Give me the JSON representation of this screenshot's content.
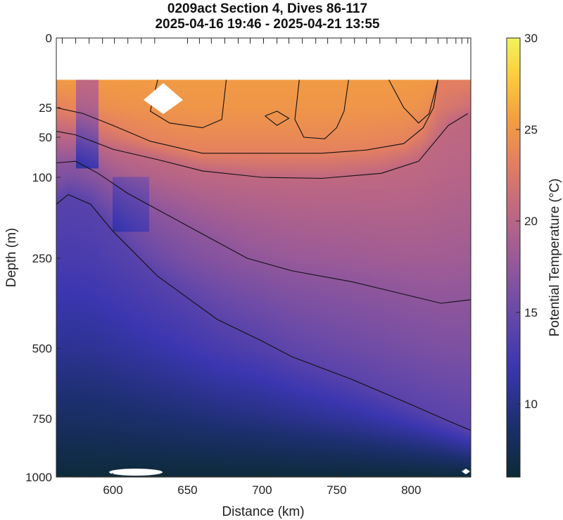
{
  "chart_data": {
    "type": "heatmap",
    "title": "0209act Section 4, Dives 86-117",
    "subtitle": "2025-04-16 19:46 - 2025-04-21 13:55",
    "xlabel": "Distance (km)",
    "ylabel": "Depth (m)",
    "colorbar_label": "Potential Temperature (°C)",
    "xlim": [
      562,
      840
    ],
    "x_ticks": [
      600,
      650,
      700,
      750,
      800
    ],
    "y_ticks": [
      0,
      25,
      50,
      100,
      250,
      500,
      750,
      1000
    ],
    "y_tick_labels": [
      "0",
      "25",
      "50",
      "100",
      "250",
      "500",
      "750",
      "1000"
    ],
    "y_scale": "nonlinear (compressed with depth)",
    "ylim": [
      0,
      1000
    ],
    "colorbar_ticks": [
      10,
      15,
      20,
      25,
      30
    ],
    "colorbar_range": [
      6,
      30
    ],
    "colormap": [
      "#0c2a36",
      "#1c2f6e",
      "#3b36b0",
      "#6a4aa8",
      "#9a5a98",
      "#c46a7e",
      "#e48060",
      "#f4a03e",
      "#fcd03c",
      "#f0f45a"
    ],
    "dive_ticks_km": [
      566,
      575,
      584,
      593,
      601,
      610,
      619,
      628,
      650,
      658,
      666,
      675,
      684,
      692,
      701,
      710,
      718,
      727,
      736,
      744,
      753,
      762,
      770,
      779,
      790,
      800,
      810,
      818,
      824,
      830,
      834,
      838
    ],
    "data_top_depth_m": 15,
    "contours": [
      {
        "level": 13,
        "points": [
          [
            562,
            150
          ],
          [
            570,
            132
          ],
          [
            585,
            150
          ],
          [
            600,
            200
          ],
          [
            630,
            300
          ],
          [
            670,
            420
          ],
          [
            700,
            480
          ],
          [
            720,
            530
          ],
          [
            760,
            610
          ],
          [
            800,
            700
          ],
          [
            825,
            760
          ],
          [
            840,
            800
          ]
        ]
      },
      {
        "level": 16,
        "points": [
          [
            562,
            82
          ],
          [
            575,
            80
          ],
          [
            590,
            95
          ],
          [
            610,
            130
          ],
          [
            650,
            190
          ],
          [
            690,
            250
          ],
          [
            720,
            285
          ],
          [
            760,
            315
          ],
          [
            790,
            345
          ],
          [
            820,
            375
          ],
          [
            840,
            365
          ]
        ]
      },
      {
        "level": 19,
        "points": [
          [
            562,
            45
          ],
          [
            575,
            48
          ],
          [
            600,
            65
          ],
          [
            630,
            78
          ],
          [
            660,
            92
          ],
          [
            700,
            100
          ],
          [
            740,
            102
          ],
          [
            780,
            95
          ],
          [
            805,
            80
          ],
          [
            825,
            40
          ],
          [
            838,
            30
          ]
        ]
      },
      {
        "level": 22,
        "points": [
          [
            562,
            25
          ],
          [
            580,
            30
          ],
          [
            600,
            40
          ],
          [
            625,
            55
          ],
          [
            660,
            70
          ],
          [
            700,
            70
          ],
          [
            740,
            70
          ],
          [
            770,
            66
          ],
          [
            795,
            58
          ],
          [
            808,
            42
          ],
          [
            815,
            25
          ],
          [
            818,
            15
          ]
        ]
      },
      {
        "level": 24,
        "points": [
          [
            630,
            15
          ],
          [
            625,
            28
          ],
          [
            638,
            38
          ],
          [
            660,
            42
          ],
          [
            673,
            35
          ],
          [
            676,
            15
          ]
        ]
      },
      {
        "level": 24,
        "points": [
          [
            725,
            15
          ],
          [
            722,
            35
          ],
          [
            728,
            50
          ],
          [
            742,
            52
          ],
          [
            750,
            42
          ],
          [
            755,
            28
          ],
          [
            758,
            15
          ]
        ]
      },
      {
        "level": 24,
        "points": [
          [
            702,
            32
          ],
          [
            710,
            28
          ],
          [
            718,
            34
          ],
          [
            710,
            40
          ],
          [
            702,
            32
          ]
        ]
      },
      {
        "level": 24,
        "points": [
          [
            785,
            15
          ],
          [
            795,
            25
          ],
          [
            805,
            38
          ],
          [
            812,
            30
          ],
          [
            818,
            15
          ]
        ]
      }
    ]
  }
}
